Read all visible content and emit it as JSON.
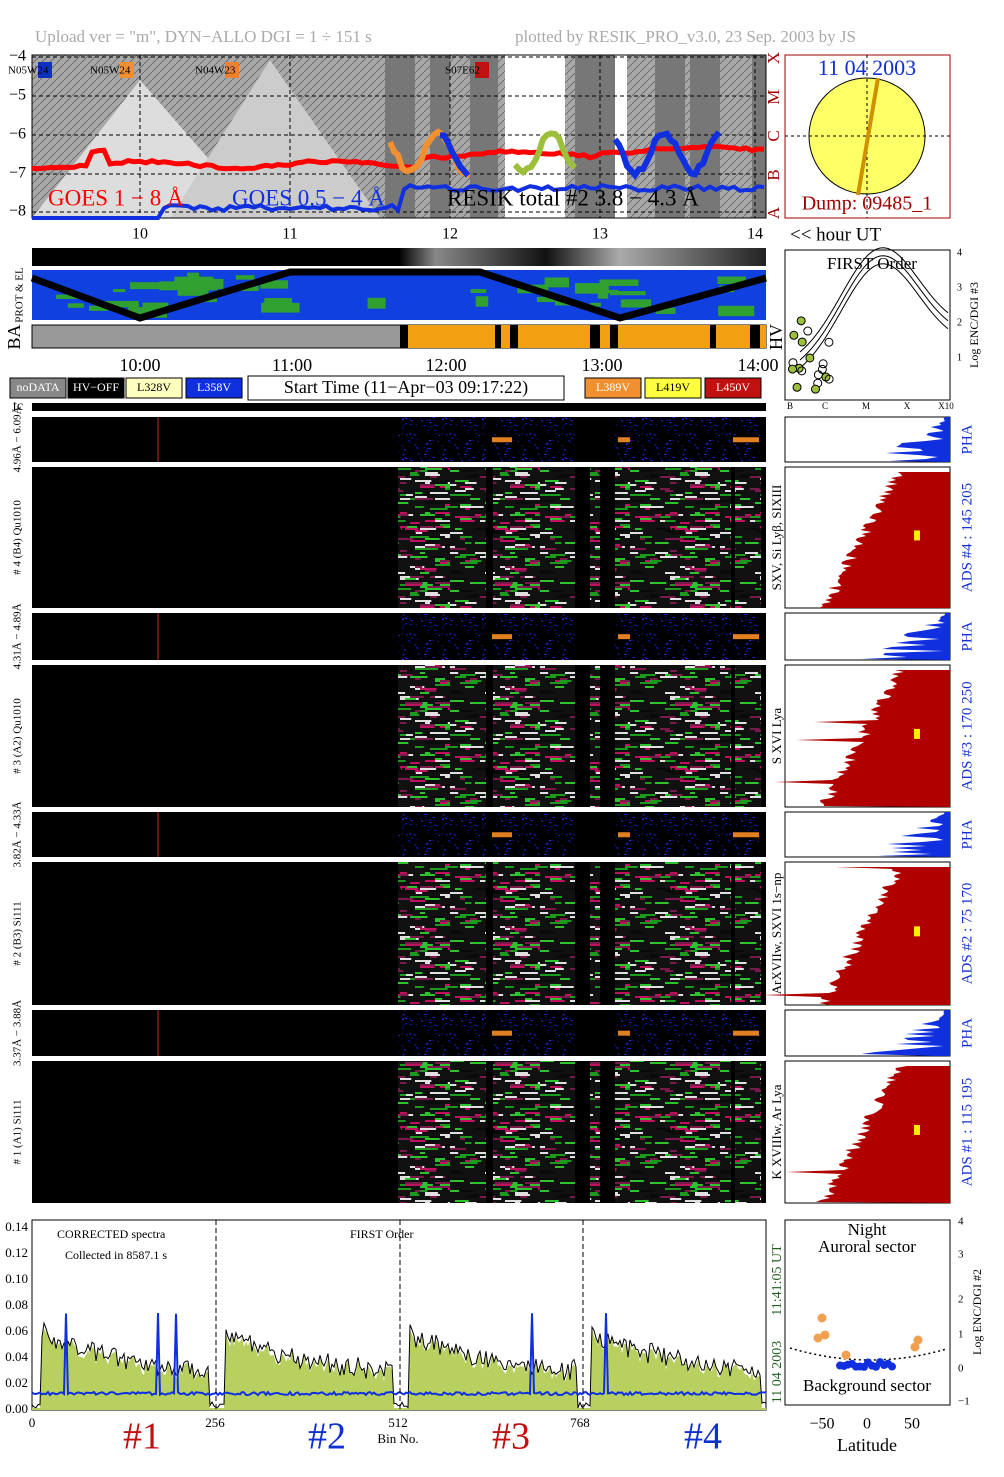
{
  "header": {
    "left": "Upload ver = \"m\", DYN−ALLO DGI =   1 ÷ 151 s",
    "right": "plotted by RESIK_PRO_v3.0, 23 Sep. 2003 by JS"
  },
  "goes": {
    "yticks": [
      "−4",
      "−5",
      "−6",
      "−7",
      "−8"
    ],
    "classes": [
      "X",
      "M",
      "C",
      "B",
      "A"
    ],
    "regions": [
      "N05W24",
      "N05W24",
      "N04W23",
      "S07E62"
    ],
    "legend": [
      "GOES 1 − 8 Å",
      "GOES 0.5 − 4 Å",
      "RESIK total #2  3.8 − 4.3 Å"
    ],
    "xticks": [
      "10",
      "11",
      "12",
      "13",
      "14"
    ]
  },
  "sun": {
    "date": "11 04 2003",
    "dump": "Dump: 09485_1",
    "hour": "<< hour UT"
  },
  "orbit": {
    "prot": "PROT & EL",
    "ba": "BA",
    "hv": "HV",
    "xticks": [
      "10:00",
      "11:00",
      "12:00",
      "13:00",
      "14:00"
    ]
  },
  "legend": {
    "nodata": "noDATA",
    "hvoff": "HV−OFF",
    "l328": "L328V",
    "l358": "L358V",
    "start": "Start Time (11−Apr−03 09:17:22)",
    "l389": "L389V",
    "l419": "L419V",
    "l450": "L450V"
  },
  "tc": "tc",
  "first_order": {
    "title": "FIRST Order",
    "ylabel": "Log ENC/DGI #3",
    "yticks": [
      "1",
      "2",
      "3",
      "4"
    ],
    "xticks": [
      "B",
      "C",
      "M",
      "X",
      "X10"
    ]
  },
  "detectors": [
    {
      "range": "4.96Å − 6.09Å",
      "name": "# 4 (B4) Qu1010",
      "pha": "PHA",
      "ads": "ADS #4 :  145 205",
      "ions": "SXV, Si Lyβ, SIXIII"
    },
    {
      "range": "4.31Å − 4.89Å",
      "name": "# 3 (A2) Qu1010",
      "pha": "PHA",
      "ads": "ADS #3 :  170 250",
      "ions": "S XVI Lya"
    },
    {
      "range": "3.82Å − 4.33Å",
      "name": "# 2 (B3) Si111",
      "pha": "PHA",
      "ads": "ADS #2 :  75 170",
      "ions": "ArXVIIw, SXVI 1s−np"
    },
    {
      "range": "3.37Å − 3.88Å",
      "name": "# 1 (A1) Si111",
      "pha": "PHA",
      "ads": "ADS #1 :  115 195",
      "ions": "K XVIIIw, Ar Lya"
    }
  ],
  "spectrum": {
    "yticks": [
      "0.00",
      "0.02",
      "0.04",
      "0.06",
      "0.08",
      "0.10",
      "0.12",
      "0.14"
    ],
    "corrected": "CORRECTED spectra",
    "collected": "Collected in  8587.1 s",
    "order": "FIRST Order",
    "time": "11:41:05 UT",
    "date": "11 04 2003",
    "xticks": [
      "0",
      "256",
      "512",
      "768"
    ],
    "xlabel": "Bin No.",
    "sections": [
      "#1",
      "#2",
      "#3",
      "#4"
    ]
  },
  "latitude": {
    "night": "Night",
    "auroral": "Auroral sector",
    "background": "Background sector",
    "ylabel": "Log ENC/DGI #2",
    "yticks": [
      "−1",
      "0",
      "1",
      "2",
      "3",
      "4"
    ],
    "xticks": [
      "−50",
      "0",
      "50"
    ],
    "xlabel": "Latitude"
  }
}
